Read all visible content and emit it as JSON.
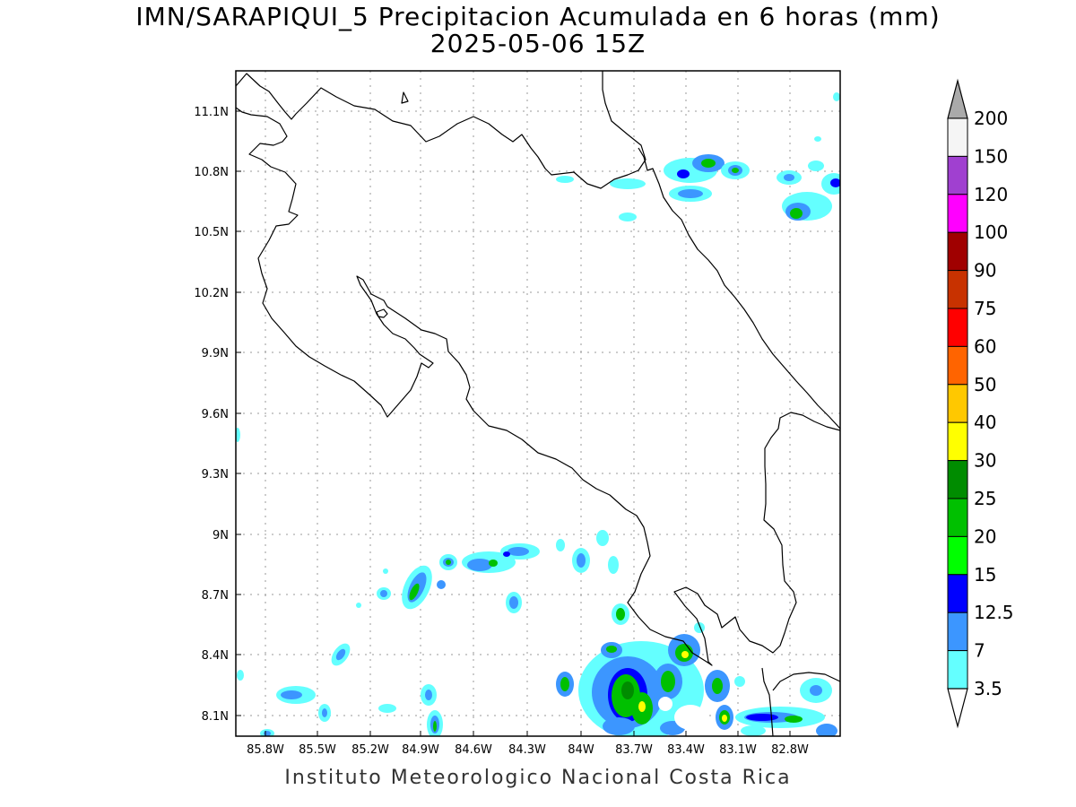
{
  "title": {
    "line1": "IMN/SARAPIQUI_5 Precipitacion Acumulada en 6 horas (mm)",
    "line2": "2025-05-06 15Z"
  },
  "footer": "Instituto Meteorologico Nacional Costa Rica",
  "axes": {
    "x_ticks": [
      "85.8W",
      "85.5W",
      "85.2W",
      "84.9W",
      "84.6W",
      "84.3W",
      "84W",
      "83.7W",
      "83.4W",
      "83.1W",
      "82.8W"
    ],
    "y_ticks": [
      "11.1N",
      "10.8N",
      "10.5N",
      "10.2N",
      "9.9N",
      "9.6N",
      "9.3N",
      "9N",
      "8.7N",
      "8.4N",
      "8.1N"
    ]
  },
  "colorbar": {
    "labels": [
      "200",
      "150",
      "120",
      "100",
      "90",
      "75",
      "60",
      "50",
      "40",
      "30",
      "25",
      "20",
      "15",
      "12.5",
      "7",
      "3.5"
    ],
    "colors": [
      "#aaaaaa",
      "#f5f5f5",
      "#a040d0",
      "#ff00ff",
      "#a00000",
      "#c83200",
      "#ff0000",
      "#ff6400",
      "#ffc800",
      "#ffff00",
      "#008c00",
      "#00c000",
      "#00ff00",
      "#0000ff",
      "#3c96ff",
      "#64ffff"
    ]
  }
}
